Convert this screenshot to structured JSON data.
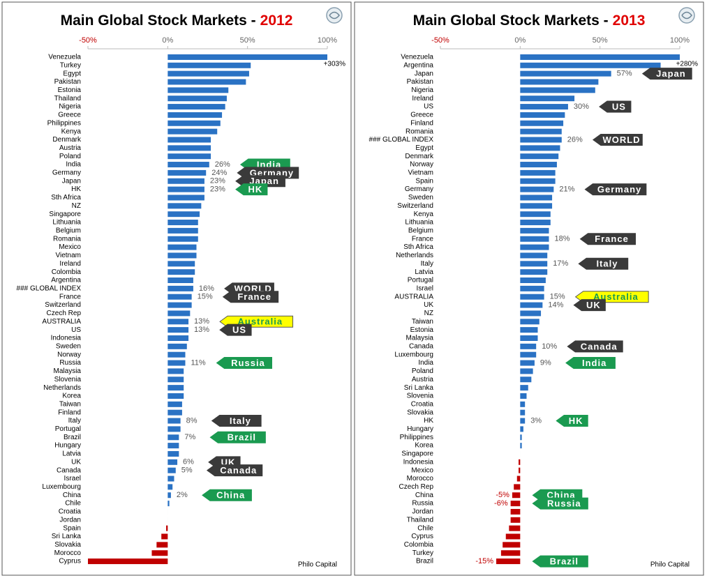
{
  "chart_data": [
    {
      "type": "hbar",
      "title": "Main Global Stock Markets -",
      "title_year": "2012",
      "source": "Philo Capital",
      "color": "#2a72c4",
      "negative_color": "#c00000",
      "xlim": [
        -50,
        100
      ],
      "xticks": [
        {
          "value": -50,
          "label": "-50%"
        },
        {
          "value": 0,
          "label": "0%"
        },
        {
          "value": 50,
          "label": "50%"
        },
        {
          "value": 100,
          "label": "100%"
        }
      ],
      "categories": [
        "Venezuela",
        "Turkey",
        "Egypt",
        "Pakistan",
        "Estonia",
        "Thailand",
        "Nigeria",
        "Greece",
        "Philippines",
        "Kenya",
        "Denmark",
        "Austria",
        "Poland",
        "India",
        "Germany",
        "Japan",
        "HK",
        "Sth Africa",
        "NZ",
        "Singapore",
        "Lithuania",
        "Belgium",
        "Romania",
        "Mexico",
        "Vietnam",
        "Ireland",
        "Colombia",
        "Argentina",
        "### GLOBAL INDEX",
        "France",
        "Switzerland",
        "Czech Rep",
        "AUSTRALIA",
        "US",
        "Indonesia",
        "Sweden",
        "Norway",
        "Russia",
        "Malaysia",
        "Slovenia",
        "Netherlands",
        "Korea",
        "Taiwan",
        "Finland",
        "Italy",
        "Portugal",
        "Brazil",
        "Hungary",
        "Latvia",
        "UK",
        "Canada",
        "Israel",
        "Luxembourg",
        "China",
        "Chile",
        "Croatia",
        "Jordan",
        "Spain",
        "Sri Lanka",
        "Slovakia",
        "Morocco",
        "Cyprus"
      ],
      "values": [
        303,
        52,
        51,
        49,
        38,
        37,
        36,
        34,
        33,
        31,
        27,
        27,
        27,
        26,
        24,
        23,
        23,
        23,
        21,
        20,
        19,
        19,
        19,
        18,
        18,
        17,
        17,
        16,
        16,
        15,
        15,
        14,
        13,
        13,
        13,
        12,
        11,
        11,
        10,
        10,
        10,
        10,
        9,
        9,
        8,
        8,
        7,
        7,
        7,
        6,
        5,
        4,
        3,
        2,
        1,
        0,
        0,
        -1,
        -4,
        -7,
        -10,
        -50
      ],
      "value_labels": [
        "+303%",
        null,
        null,
        null,
        null,
        null,
        null,
        null,
        null,
        null,
        null,
        null,
        null,
        "26%",
        "24%",
        "23%",
        "23%",
        null,
        null,
        null,
        null,
        null,
        null,
        null,
        null,
        null,
        null,
        null,
        "16%",
        "15%",
        null,
        null,
        "13%",
        "13%",
        null,
        null,
        null,
        "11%",
        null,
        null,
        null,
        null,
        null,
        null,
        "8%",
        null,
        "7%",
        null,
        null,
        "6%",
        "5%",
        null,
        null,
        "2%",
        null,
        null,
        null,
        null,
        null,
        null,
        null,
        null
      ],
      "callouts": [
        null,
        null,
        null,
        null,
        null,
        null,
        null,
        null,
        null,
        null,
        null,
        null,
        null,
        {
          "text": "India",
          "color": "#1a9a50",
          "text_color": "#ffffff"
        },
        {
          "text": "Germany",
          "color": "#3a3a3a",
          "text_color": "#ffffff"
        },
        {
          "text": "Japan",
          "color": "#3a3a3a",
          "text_color": "#ffffff"
        },
        {
          "text": "HK",
          "color": "#1a9a50",
          "text_color": "#ffffff"
        },
        null,
        null,
        null,
        null,
        null,
        null,
        null,
        null,
        null,
        null,
        null,
        {
          "text": "WORLD",
          "color": "#3a3a3a",
          "text_color": "#ffffff"
        },
        {
          "text": "France",
          "color": "#3a3a3a",
          "text_color": "#ffffff"
        },
        null,
        null,
        {
          "text": "Australia",
          "color": "#ffff00",
          "text_color": "#1a9a50"
        },
        {
          "text": "US",
          "color": "#3a3a3a",
          "text_color": "#ffffff"
        },
        null,
        null,
        null,
        {
          "text": "Russia",
          "color": "#1a9a50",
          "text_color": "#ffffff"
        },
        null,
        null,
        null,
        null,
        null,
        null,
        {
          "text": "Italy",
          "color": "#3a3a3a",
          "text_color": "#ffffff"
        },
        null,
        {
          "text": "Brazil",
          "color": "#1a9a50",
          "text_color": "#ffffff"
        },
        null,
        null,
        {
          "text": "UK",
          "color": "#3a3a3a",
          "text_color": "#ffffff"
        },
        {
          "text": "Canada",
          "color": "#3a3a3a",
          "text_color": "#ffffff"
        },
        null,
        null,
        {
          "text": "China",
          "color": "#1a9a50",
          "text_color": "#ffffff"
        },
        null,
        null,
        null,
        null,
        null,
        null,
        null,
        null
      ]
    },
    {
      "type": "hbar",
      "title": "Main Global Stock Markets -",
      "title_year": "2013",
      "source": "Philo Capital",
      "color": "#2a72c4",
      "negative_color": "#c00000",
      "xlim": [
        -50,
        100
      ],
      "xticks": [
        {
          "value": -50,
          "label": "-50%"
        },
        {
          "value": 0,
          "label": "0%"
        },
        {
          "value": 50,
          "label": "50%"
        },
        {
          "value": 100,
          "label": "100%"
        }
      ],
      "categories": [
        "Venezuela",
        "Argentina",
        "Japan",
        "Pakistan",
        "Nigeria",
        "Ireland",
        "US",
        "Greece",
        "Finland",
        "Romania",
        "### GLOBAL INDEX",
        "Egypt",
        "Denmark",
        "Norway",
        "Vietnam",
        "Spain",
        "Germany",
        "Sweden",
        "Switzerland",
        "Kenya",
        "Lithuania",
        "Belgium",
        "France",
        "Sth Africa",
        "Netherlands",
        "Italy",
        "Latvia",
        "Portugal",
        "Israel",
        "AUSTRALIA",
        "UK",
        "NZ",
        "Taiwan",
        "Estonia",
        "Malaysia",
        "Canada",
        "Luxembourg",
        "India",
        "Poland",
        "Austria",
        "Sri Lanka",
        "Slovenia",
        "Croatia",
        "Slovakia",
        "HK",
        "Hungary",
        "Philippines",
        "Korea",
        "Singapore",
        "Indonesia",
        "Mexico",
        "Morocco",
        "Czech Rep",
        "China",
        "Russia",
        "Jordan",
        "Thailand",
        "Chile",
        "Cyprus",
        "Colombia",
        "Turkey",
        "Brazil"
      ],
      "values": [
        280,
        88,
        57,
        49,
        47,
        34,
        30,
        28,
        27,
        26,
        26,
        25,
        24,
        23,
        22,
        22,
        21,
        20,
        20,
        19,
        19,
        18,
        18,
        18,
        17,
        17,
        17,
        16,
        15,
        15,
        14,
        13,
        12,
        11,
        11,
        10,
        10,
        9,
        8,
        7,
        5,
        4,
        3,
        3,
        3,
        2,
        1,
        1,
        0,
        -1,
        -1,
        -2,
        -4,
        -5,
        -6,
        -6,
        -6,
        -7,
        -9,
        -11,
        -12,
        -15
      ],
      "value_labels": [
        "+280%",
        null,
        "57%",
        null,
        null,
        null,
        "30%",
        null,
        null,
        null,
        "26%",
        null,
        null,
        null,
        null,
        null,
        "21%",
        null,
        null,
        null,
        null,
        null,
        "18%",
        null,
        null,
        "17%",
        null,
        null,
        null,
        "15%",
        "14%",
        null,
        null,
        null,
        null,
        "10%",
        null,
        "9%",
        null,
        null,
        null,
        null,
        null,
        null,
        "3%",
        null,
        null,
        null,
        null,
        null,
        null,
        null,
        null,
        "-5%",
        "-6%",
        null,
        null,
        null,
        null,
        null,
        null,
        "-15%"
      ],
      "callouts": [
        null,
        null,
        {
          "text": "Japan",
          "color": "#3a3a3a",
          "text_color": "#ffffff"
        },
        null,
        null,
        null,
        {
          "text": "US",
          "color": "#3a3a3a",
          "text_color": "#ffffff"
        },
        null,
        null,
        null,
        {
          "text": "WORLD",
          "color": "#3a3a3a",
          "text_color": "#ffffff"
        },
        null,
        null,
        null,
        null,
        null,
        {
          "text": "Germany",
          "color": "#3a3a3a",
          "text_color": "#ffffff"
        },
        null,
        null,
        null,
        null,
        null,
        {
          "text": "France",
          "color": "#3a3a3a",
          "text_color": "#ffffff"
        },
        null,
        null,
        {
          "text": "Italy",
          "color": "#3a3a3a",
          "text_color": "#ffffff"
        },
        null,
        null,
        null,
        {
          "text": "Australia",
          "color": "#ffff00",
          "text_color": "#1a9a50"
        },
        {
          "text": "UK",
          "color": "#3a3a3a",
          "text_color": "#ffffff"
        },
        null,
        null,
        null,
        null,
        {
          "text": "Canada",
          "color": "#3a3a3a",
          "text_color": "#ffffff"
        },
        null,
        {
          "text": "India",
          "color": "#1a9a50",
          "text_color": "#ffffff"
        },
        null,
        null,
        null,
        null,
        null,
        null,
        {
          "text": "HK",
          "color": "#1a9a50",
          "text_color": "#ffffff"
        },
        null,
        null,
        null,
        null,
        null,
        null,
        null,
        null,
        {
          "text": "China",
          "color": "#1a9a50",
          "text_color": "#ffffff"
        },
        {
          "text": "Russia",
          "color": "#1a9a50",
          "text_color": "#ffffff"
        },
        null,
        null,
        null,
        null,
        null,
        null,
        {
          "text": "Brazil",
          "color": "#1a9a50",
          "text_color": "#ffffff"
        }
      ]
    }
  ]
}
